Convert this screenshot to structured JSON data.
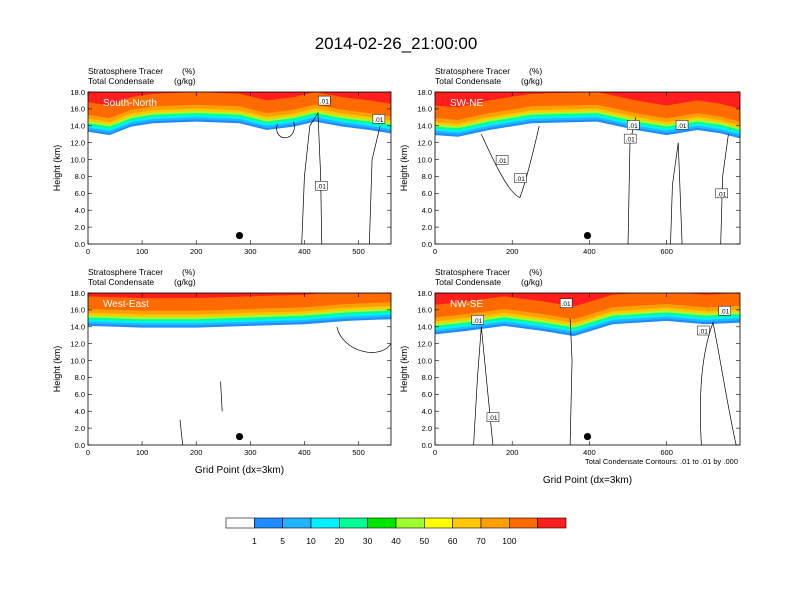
{
  "figure": {
    "title": "2014-02-26_21:00:00",
    "contour_note": "Total Condensate Contours: .01 to .01 by .000",
    "xlabel": "Grid Point (dx=3km)"
  },
  "colorbar": {
    "labels": [
      "1",
      "5",
      "10",
      "20",
      "30",
      "40",
      "50",
      "60",
      "70",
      "100"
    ],
    "colors": [
      "#ffffff",
      "#1e8cff",
      "#22b4ff",
      "#00f0ff",
      "#00ff94",
      "#00e600",
      "#a0ff30",
      "#ffff00",
      "#ffc800",
      "#ffa000",
      "#ff6a00",
      "#ff1e1e"
    ]
  },
  "chart_data": [
    {
      "type": "heatmap",
      "panel_label": "South-North",
      "subtitle_left": "Stratosphere Tracer",
      "subtitle_unit": "(%)",
      "subtitle2_left": "Total Condensate",
      "subtitle2_unit": "(g/kg)",
      "ylabel": "Height (km)",
      "xlabel": "",
      "xlim": [
        0,
        560
      ],
      "ylim": [
        0,
        18
      ],
      "xticks": [
        0,
        100,
        200,
        300,
        400,
        500
      ],
      "yticks": [
        0,
        2,
        4,
        6,
        8,
        10,
        12,
        14,
        16,
        18
      ],
      "ytick_labels": [
        "0.0",
        "2.0",
        "4.0",
        "6.0",
        "8.0",
        "10.0",
        "12.0",
        "14.0",
        "16.0",
        "18.0"
      ],
      "contour_labels": [
        ".01",
        ".01",
        ".01"
      ],
      "marker": {
        "x": 280,
        "y": 1.0
      },
      "tropopause_km": [
        {
          "x": 0,
          "y": 14.4
        },
        {
          "x": 40,
          "y": 14.0
        },
        {
          "x": 80,
          "y": 15.0
        },
        {
          "x": 120,
          "y": 15.4
        },
        {
          "x": 200,
          "y": 15.6
        },
        {
          "x": 280,
          "y": 15.4
        },
        {
          "x": 330,
          "y": 14.6
        },
        {
          "x": 380,
          "y": 15.0
        },
        {
          "x": 420,
          "y": 15.6
        },
        {
          "x": 470,
          "y": 15.0
        },
        {
          "x": 520,
          "y": 14.6
        },
        {
          "x": 560,
          "y": 14.2
        }
      ]
    },
    {
      "type": "heatmap",
      "panel_label": "SW-NE",
      "subtitle_left": "Stratosphere Tracer",
      "subtitle_unit": "(%)",
      "subtitle2_left": "Total Condensate",
      "subtitle2_unit": "(g/kg)",
      "ylabel": "Height (km)",
      "xlabel": "",
      "xlim": [
        0,
        790
      ],
      "ylim": [
        0,
        18
      ],
      "xticks": [
        0,
        200,
        400,
        600
      ],
      "yticks": [
        0,
        2,
        4,
        6,
        8,
        10,
        12,
        14,
        16,
        18
      ],
      "ytick_labels": [
        "0.0",
        "2.0",
        "4.0",
        "6.0",
        "8.0",
        "10.0",
        "12.0",
        "14.0",
        "16.0",
        "18.0"
      ],
      "contour_labels": [
        ".01",
        ".01",
        ".01",
        ".01",
        ".01",
        ".01"
      ],
      "marker": {
        "x": 395,
        "y": 1.0
      },
      "tropopause_km": [
        {
          "x": 0,
          "y": 14.0
        },
        {
          "x": 60,
          "y": 13.8
        },
        {
          "x": 140,
          "y": 14.6
        },
        {
          "x": 250,
          "y": 15.4
        },
        {
          "x": 420,
          "y": 15.6
        },
        {
          "x": 520,
          "y": 14.6
        },
        {
          "x": 600,
          "y": 14.0
        },
        {
          "x": 680,
          "y": 14.6
        },
        {
          "x": 740,
          "y": 14.2
        },
        {
          "x": 790,
          "y": 13.6
        }
      ]
    },
    {
      "type": "heatmap",
      "panel_label": "West-East",
      "subtitle_left": "Stratosphere Tracer",
      "subtitle_unit": "(%)",
      "subtitle2_left": "Total Condensate",
      "subtitle2_unit": "(g/kg)",
      "ylabel": "Height (km)",
      "xlabel": "Grid Point (dx=3km)",
      "xlim": [
        0,
        560
      ],
      "ylim": [
        0,
        18
      ],
      "xticks": [
        0,
        100,
        200,
        300,
        400,
        500
      ],
      "yticks": [
        0,
        2,
        4,
        6,
        8,
        10,
        12,
        14,
        16,
        18
      ],
      "ytick_labels": [
        "0.0",
        "2.0",
        "4.0",
        "6.0",
        "8.0",
        "10.0",
        "12.0",
        "14.0",
        "16.0",
        "18.0"
      ],
      "contour_labels": [],
      "marker": {
        "x": 280,
        "y": 1.0
      },
      "tropopause_km": [
        {
          "x": 0,
          "y": 15.2
        },
        {
          "x": 100,
          "y": 15.0
        },
        {
          "x": 200,
          "y": 15.0
        },
        {
          "x": 300,
          "y": 15.2
        },
        {
          "x": 400,
          "y": 15.4
        },
        {
          "x": 480,
          "y": 15.8
        },
        {
          "x": 560,
          "y": 16.0
        }
      ]
    },
    {
      "type": "heatmap",
      "panel_label": "NW-SE",
      "subtitle_left": "Stratosphere Tracer",
      "subtitle_unit": "(%)",
      "subtitle2_left": "Total Condensate",
      "subtitle2_unit": "(g/kg)",
      "ylabel": "Height (km)",
      "xlabel": "Grid Point (dx=3km)",
      "xlim": [
        0,
        790
      ],
      "ylim": [
        0,
        18
      ],
      "xticks": [
        0,
        200,
        400,
        600
      ],
      "yticks": [
        0,
        2,
        4,
        6,
        8,
        10,
        12,
        14,
        16,
        18
      ],
      "ytick_labels": [
        "0.0",
        "2.0",
        "4.0",
        "6.0",
        "8.0",
        "10.0",
        "12.0",
        "14.0",
        "16.0",
        "18.0"
      ],
      "contour_labels": [
        ".01",
        ".01",
        ".01",
        ".01",
        ".01"
      ],
      "marker": {
        "x": 395,
        "y": 1.0
      },
      "tropopause_km": [
        {
          "x": 0,
          "y": 14.2
        },
        {
          "x": 80,
          "y": 14.6
        },
        {
          "x": 180,
          "y": 15.2
        },
        {
          "x": 280,
          "y": 14.6
        },
        {
          "x": 360,
          "y": 14.0
        },
        {
          "x": 460,
          "y": 15.4
        },
        {
          "x": 600,
          "y": 15.8
        },
        {
          "x": 700,
          "y": 15.4
        },
        {
          "x": 790,
          "y": 15.6
        }
      ]
    }
  ]
}
